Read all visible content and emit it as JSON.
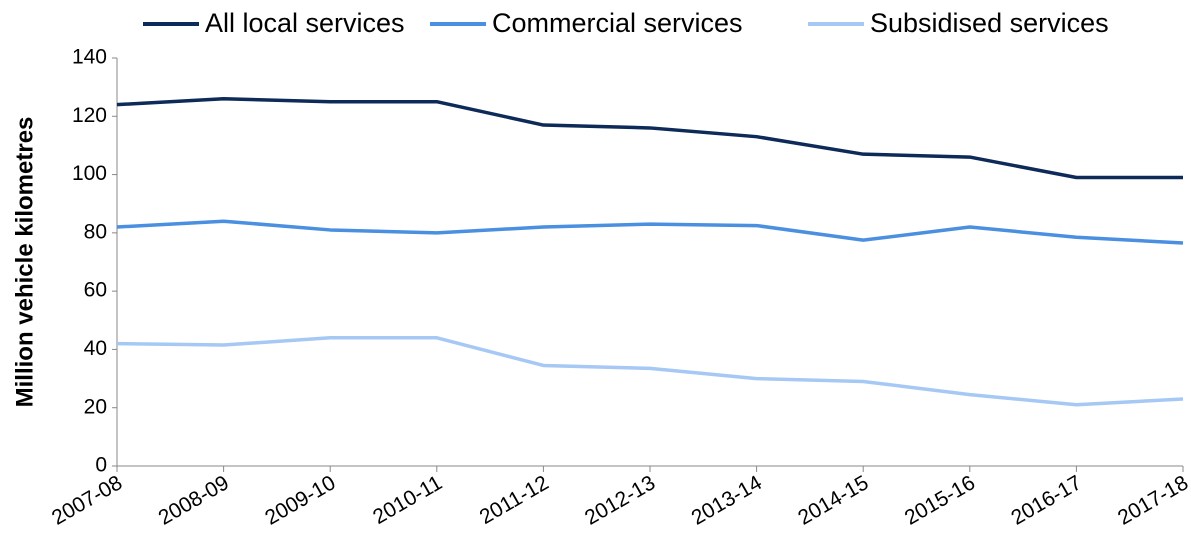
{
  "chart_data": {
    "type": "line",
    "y_label": "Million vehicle kilometres",
    "categories": [
      "2007-08",
      "2008-09",
      "2009-10",
      "2010-11",
      "2011-12",
      "2012-13",
      "2013-14",
      "2014-15",
      "2015-16",
      "2016-17",
      "2017-18"
    ],
    "series": [
      {
        "name": "All local services",
        "color": "#0d2a59",
        "values": [
          124,
          126,
          125,
          125,
          117,
          116,
          113,
          107,
          106,
          99,
          99
        ]
      },
      {
        "name": "Commercial services",
        "color": "#4a8fe0",
        "values": [
          82,
          84,
          81,
          80,
          82,
          83,
          82.5,
          77.5,
          82,
          78.5,
          76.5
        ]
      },
      {
        "name": "Subsidised services",
        "color": "#a6c8f5",
        "values": [
          42,
          41.5,
          44,
          44,
          34.5,
          33.5,
          30,
          29,
          24.5,
          21,
          23
        ]
      }
    ],
    "ylim": [
      0,
      140
    ],
    "yticks": [
      0,
      20,
      40,
      60,
      80,
      100,
      120,
      140
    ],
    "grid": false,
    "legend": "top"
  }
}
